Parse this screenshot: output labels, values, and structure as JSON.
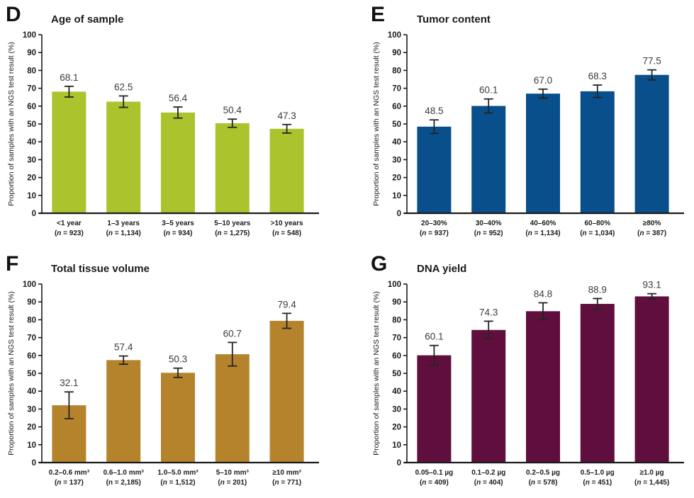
{
  "figure": {
    "background": "#ffffff",
    "text_color": "#1b1b1b",
    "value_label_color": "#3c3c3c",
    "error_bar_color": "#242424"
  },
  "chart_data": [
    {
      "type": "bar",
      "panel_letter": "D",
      "title": "Age of sample",
      "ylabel": "Proportion of samples with an NGS test result (%)",
      "xlabel": "",
      "ylim": [
        0,
        100
      ],
      "ytick_step": 10,
      "grid": false,
      "legend_position": "none",
      "bar_color": "#abc32d",
      "categories": [
        "<1 year",
        "1–3 years",
        "3–5 years",
        "5–10 years",
        ">10 years"
      ],
      "n_labels": [
        "n = 923",
        "n = 1,134",
        "n = 934",
        "n = 1,275",
        "n = 548"
      ],
      "n_italic": [
        true,
        true,
        true,
        true,
        true
      ],
      "values": [
        68.1,
        62.5,
        56.4,
        50.4,
        47.3
      ],
      "value_labels": [
        "68.1",
        "62.5",
        "56.4",
        "50.4",
        "47.3"
      ],
      "errors": [
        3.0,
        3.2,
        3.1,
        2.3,
        2.4
      ]
    },
    {
      "type": "bar",
      "panel_letter": "E",
      "title": "Tumor content",
      "ylabel": "Proportion of samples with an NGS test result (%)",
      "xlabel": "",
      "ylim": [
        0,
        100
      ],
      "ytick_step": 10,
      "grid": false,
      "legend_position": "none",
      "bar_color": "#084f8c",
      "categories": [
        "20–30%",
        "30–40%",
        "40–60%",
        "60–80%",
        "≥80%"
      ],
      "n_labels": [
        "n = 937",
        "n = 952",
        "n = 1,134",
        "n = 1,034",
        "n = 387"
      ],
      "n_italic": [
        true,
        true,
        true,
        true,
        true
      ],
      "values": [
        48.5,
        60.1,
        67.0,
        68.3,
        77.5
      ],
      "value_labels": [
        "48.5",
        "60.1",
        "67.0",
        "68.3",
        "77.5"
      ],
      "errors": [
        3.8,
        3.9,
        2.5,
        3.5,
        2.8
      ]
    },
    {
      "type": "bar",
      "panel_letter": "F",
      "title": "Total tissue volume",
      "ylabel": "Proportion of samples with an NGS test result (%)",
      "xlabel": "",
      "ylim": [
        0,
        100
      ],
      "ytick_step": 10,
      "grid": false,
      "legend_position": "none",
      "bar_color": "#b5832b",
      "categories": [
        "0.2–0.6 mm³",
        "0.6–1.0 mm³",
        "1.0–5.0 mm³",
        "5–10 mm³",
        "≥10 mm³"
      ],
      "n_labels": [
        "n = 137",
        "n = 2,185",
        "n = 1,512",
        "n = 201",
        "n = 771"
      ],
      "n_italic": [
        true,
        false,
        true,
        true,
        true
      ],
      "values": [
        32.1,
        57.4,
        50.3,
        60.7,
        79.4
      ],
      "value_labels": [
        "32.1",
        "57.4",
        "50.3",
        "60.7",
        "79.4"
      ],
      "errors": [
        7.5,
        2.3,
        2.6,
        6.6,
        4.2
      ]
    },
    {
      "type": "bar",
      "panel_letter": "G",
      "title": "DNA yield",
      "ylabel": "Proportion of samples with an NGS test result (%)",
      "xlabel": "",
      "ylim": [
        0,
        100
      ],
      "ytick_step": 10,
      "grid": false,
      "legend_position": "none",
      "bar_color": "#5f0e3e",
      "categories": [
        "0.05–0.1 µg",
        "0.1–0.2 µg",
        "0.2–0.5 µg",
        "0.5–1.0 µg",
        "≥1.0 µg"
      ],
      "n_labels": [
        "n = 409",
        "n = 404",
        "n = 578",
        "n = 451",
        "n = 1,445"
      ],
      "n_italic": [
        true,
        true,
        true,
        true,
        true
      ],
      "values": [
        60.1,
        74.3,
        84.8,
        88.9,
        93.1
      ],
      "value_labels": [
        "60.1",
        "74.3",
        "84.8",
        "88.9",
        "93.1"
      ],
      "errors": [
        5.5,
        4.9,
        4.7,
        3.0,
        1.5
      ]
    }
  ]
}
